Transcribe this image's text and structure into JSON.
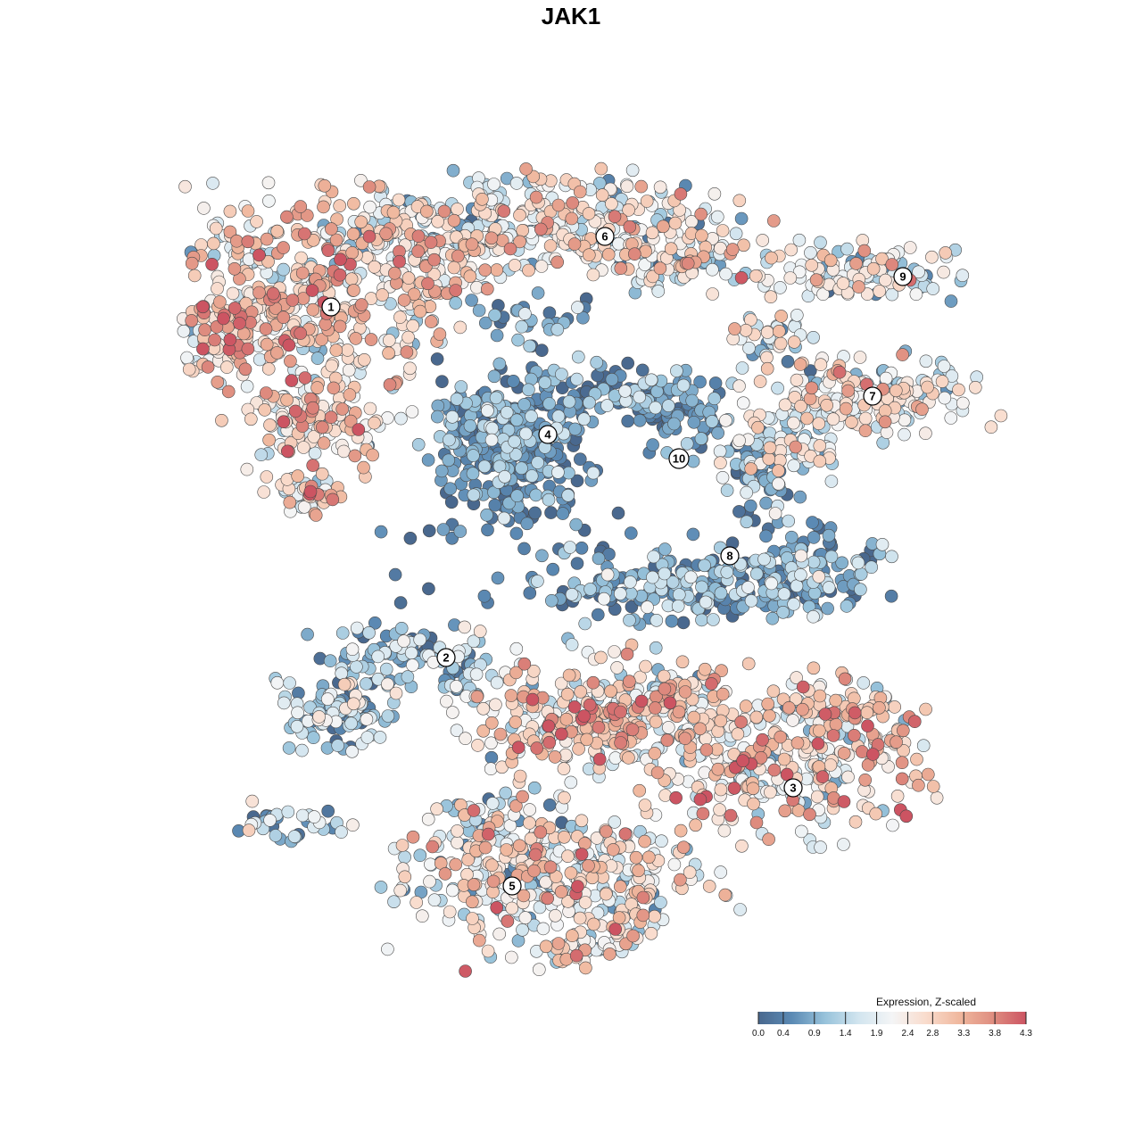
{
  "chart_data": {
    "type": "scatter",
    "title": "JAK1",
    "xlabel": "",
    "ylabel": "",
    "grid": false,
    "legend_placement": "bottom-right",
    "colorscale": {
      "title": "Expression, Z-scaled",
      "min": 0.0,
      "max": 4.3,
      "ticks": [
        "0.0",
        "0.4",
        "0.9",
        "1.4",
        "1.9",
        "2.4",
        "2.8",
        "3.3",
        "3.8",
        "4.3"
      ],
      "stops": [
        "#49688e",
        "#5b8ab4",
        "#98c3db",
        "#d2e5ef",
        "#f4f5f6",
        "#f9dccd",
        "#f0b89e",
        "#df8e80",
        "#cc5462"
      ]
    },
    "clusters": [
      {
        "label": "1",
        "mean_expression": 2.6
      },
      {
        "label": "2",
        "mean_expression": 1.1
      },
      {
        "label": "3",
        "mean_expression": 2.6
      },
      {
        "label": "4",
        "mean_expression": 0.6
      },
      {
        "label": "5",
        "mean_expression": 2.2
      },
      {
        "label": "6",
        "mean_expression": 2.1
      },
      {
        "label": "7",
        "mean_expression": 2.1
      },
      {
        "label": "8",
        "mean_expression": 0.8
      },
      {
        "label": "9",
        "mean_expression": 2.0
      },
      {
        "label": "10",
        "mean_expression": 0.6
      }
    ]
  }
}
